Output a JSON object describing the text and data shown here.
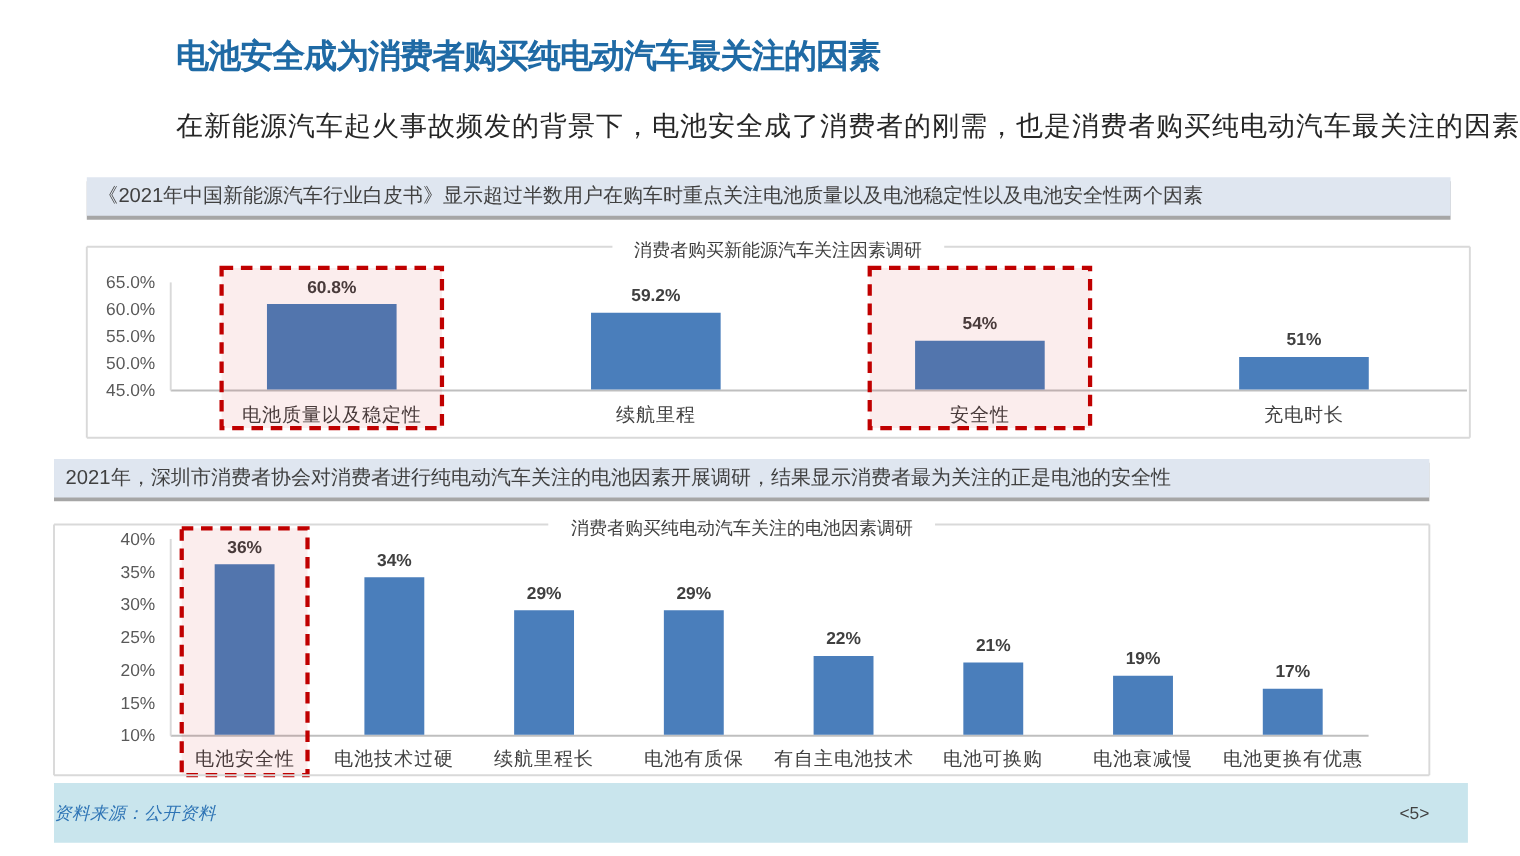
{
  "chart_data": [
    {
      "type": "other",
      "title": "电池安全成为消费者购买纯电动汽车最关注的因素",
      "subtitle": "在新能源汽车起火事故频发的背景下，电池安全成了消费者的刚需，也是消费者购买纯电动汽车最关注的因素"
    },
    {
      "type": "bar",
      "title": "消费者购买新能源汽车关注因素调研",
      "categories": [
        "电池质量以及稳定性",
        "续航里程",
        "安全性",
        "充电时长"
      ],
      "values": [
        60.8,
        59.2,
        54,
        51
      ],
      "value_labels": [
        "60.8%",
        "59.2%",
        "54%",
        "51%"
      ],
      "color": "#4a7ebb",
      "ylim": [
        45,
        65
      ],
      "yticks": [
        {
          "value": 45,
          "label": "45.0%"
        },
        {
          "value": 50,
          "label": "50.0%"
        },
        {
          "value": 55,
          "label": "55.0%"
        },
        {
          "value": 60,
          "label": "60.0%"
        },
        {
          "value": 65,
          "label": "65.0%"
        }
      ],
      "bands": [
        {
          "axis": "x",
          "from": "电池质量以及稳定性",
          "to": "电池质量以及稳定性",
          "color": "#c00000"
        },
        {
          "axis": "x",
          "from": "安全性",
          "to": "安全性",
          "color": "#c00000"
        }
      ],
      "annotations": [
        "《2021年中国新能源汽车行业白皮书》显示超过半数用户在购车时重点关注电池质量以及电池稳定性以及电池安全性两个因素"
      ]
    },
    {
      "type": "bar",
      "title": "消费者购买纯电动汽车关注的电池因素调研",
      "categories": [
        "电池安全性",
        "电池技术过硬",
        "续航里程长",
        "电池有质保",
        "有自主电池技术",
        "电池可换购",
        "电池衰减慢",
        "电池更换有优惠"
      ],
      "values": [
        36,
        34,
        29,
        29,
        22,
        21,
        19,
        17
      ],
      "value_labels": [
        "36%",
        "34%",
        "29%",
        "29%",
        "22%",
        "21%",
        "19%",
        "17%"
      ],
      "color": "#4a7ebb",
      "ylim": [
        10,
        40
      ],
      "yticks": [
        {
          "value": 10,
          "label": "10%"
        },
        {
          "value": 15,
          "label": "15%"
        },
        {
          "value": 20,
          "label": "20%"
        },
        {
          "value": 25,
          "label": "25%"
        },
        {
          "value": 30,
          "label": "30%"
        },
        {
          "value": 35,
          "label": "35%"
        },
        {
          "value": 40,
          "label": "40%"
        }
      ],
      "bands": [
        {
          "axis": "x",
          "from": "电池安全性",
          "to": "电池安全性",
          "color": "#c00000"
        }
      ],
      "annotations": [
        "2021年，深圳市消费者协会对消费者进行纯电动汽车关注的电池因素开展调研，结果显示消费者最为关注的正是电池的安全性",
        "资料来源：公开资料",
        "<5>"
      ]
    }
  ]
}
